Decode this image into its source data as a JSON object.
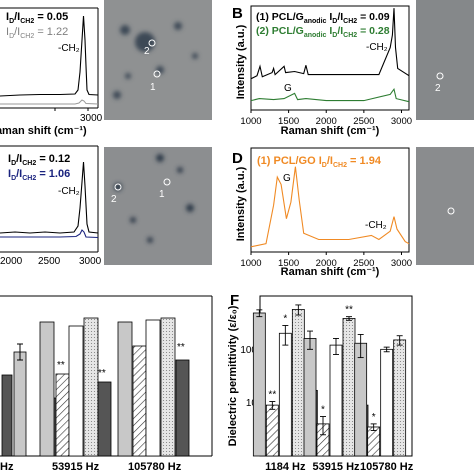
{
  "panels": {
    "A": {
      "legend": [
        {
          "html": "I<tspan font-size='7' dy='3'>D</tspan><tspan dy='-3'>/I</tspan><tspan font-size='7' dy='3'>CH2</tspan><tspan dy='-3'> = 0.05</tspan>",
          "color": "#000000",
          "bold": true
        },
        {
          "html": "I<tspan font-size='7' dy='3'>D</tspan><tspan dy='-3'>/I</tspan><tspan font-size='7' dy='3'>CH2</tspan><tspan dy='-3'> = 1.22</tspan>",
          "color": "#808080",
          "bold": false
        }
      ],
      "peak_label": "-CH₂",
      "xlabel": "Raman shift (cm⁻¹)",
      "xticks": [
        "3000"
      ],
      "spot_labels": [
        "2",
        "1"
      ]
    },
    "B": {
      "letter": "B",
      "legend": [
        {
          "text": "(1)  PCL/G",
          "sub": "anodic",
          "tail": "  I",
          "ratio": "0.09",
          "color": "#000000"
        },
        {
          "text": "(2)  PCL/G",
          "sub": "anodic",
          "tail": "  I",
          "ratio": "0.28",
          "color": "#2e7d32"
        }
      ],
      "legend_plain": [
        "(1)  PCL/G",
        "anodic",
        "I",
        "D",
        "/I",
        "CH2",
        " = 0.09",
        "(2)  PCL/G",
        "anodic",
        " = 0.28"
      ],
      "peak_label": "-CH₂",
      "g_label": "G",
      "ylabel": "Intensity (a.u.)",
      "xlabel": "Raman shift (cm⁻¹)",
      "xticks": [
        "1000",
        "1500",
        "2000",
        "2500",
        "3000"
      ],
      "spot_labels": [
        "2"
      ]
    },
    "C": {
      "legend_ratios": [
        " = 0.12",
        " = 1.06"
      ],
      "legend_colors": [
        "#000000",
        "#1a237e"
      ],
      "peak_label": "-CH₂",
      "xticks": [
        "2000",
        "2500",
        "3000"
      ],
      "spot_labels": [
        "2",
        "1"
      ]
    },
    "D": {
      "letter": "D",
      "legend_text": "(1)  PCL/GO",
      "legend_ratio": " = 1.94",
      "color": "#f08a24",
      "g_label": "G",
      "peak_label": "-CH₂",
      "ylabel": "Intensity (a.u.)",
      "xlabel": "Raman shift (cm⁻¹)",
      "xticks": [
        "1000",
        "1500",
        "2000",
        "2500",
        "3000"
      ]
    },
    "E": {
      "xticks": [
        "Hz",
        "53915 Hz",
        "105780 Hz"
      ],
      "marks": [
        "**",
        "**",
        "**"
      ]
    },
    "F": {
      "letter": "F",
      "ylabel": "Dielectric permittivity (ε/ε₀)",
      "yticks": [
        "10",
        "100"
      ],
      "xticks": [
        "1184 Hz",
        "53915 Hz",
        "105780 Hz"
      ],
      "ylim_log": [
        1,
        1000
      ]
    }
  },
  "chart_data": [
    {
      "type": "line",
      "panel": "B",
      "xlabel": "Raman shift (cm⁻¹)",
      "ylabel": "Intensity (a.u.)",
      "xlim": [
        1000,
        3100
      ],
      "series": [
        {
          "name": "(1) PCL/Ganodic",
          "color": "#000000",
          "points": [
            [
              1000,
              0.3
            ],
            [
              1080,
              0.33
            ],
            [
              1120,
              0.42
            ],
            [
              1150,
              0.32
            ],
            [
              1280,
              0.36
            ],
            [
              1300,
              0.4
            ],
            [
              1320,
              0.34
            ],
            [
              1440,
              0.42
            ],
            [
              1460,
              0.36
            ],
            [
              1580,
              0.37
            ],
            [
              1700,
              0.35
            ],
            [
              1730,
              0.43
            ],
            [
              1760,
              0.34
            ],
            [
              2000,
              0.34
            ],
            [
              2400,
              0.34
            ],
            [
              2700,
              0.34
            ],
            [
              2850,
              0.6
            ],
            [
              2880,
              0.72
            ],
            [
              2900,
              0.98
            ],
            [
              2920,
              0.6
            ],
            [
              2950,
              0.4
            ],
            [
              3100,
              0.33
            ]
          ]
        },
        {
          "name": "(2) PCL/Ganodic",
          "color": "#2e7d32",
          "points": [
            [
              1000,
              0.09
            ],
            [
              1110,
              0.11
            ],
            [
              1300,
              0.1
            ],
            [
              1440,
              0.11
            ],
            [
              1580,
              0.16
            ],
            [
              1620,
              0.1
            ],
            [
              1730,
              0.11
            ],
            [
              2000,
              0.09
            ],
            [
              2500,
              0.09
            ],
            [
              2850,
              0.15
            ],
            [
              2880,
              0.18
            ],
            [
              2900,
              0.2
            ],
            [
              2930,
              0.11
            ],
            [
              3100,
              0.08
            ]
          ]
        }
      ]
    },
    {
      "type": "line",
      "panel": "D",
      "xlabel": "Raman shift (cm⁻¹)",
      "ylabel": "Intensity (a.u.)",
      "xlim": [
        1000,
        3100
      ],
      "series": [
        {
          "name": "(1) PCL/GO",
          "color": "#f08a24",
          "points": [
            [
              1000,
              0.05
            ],
            [
              1200,
              0.08
            ],
            [
              1300,
              0.45
            ],
            [
              1350,
              0.72
            ],
            [
              1400,
              0.65
            ],
            [
              1470,
              0.32
            ],
            [
              1530,
              0.48
            ],
            [
              1590,
              0.82
            ],
            [
              1640,
              0.5
            ],
            [
              1700,
              0.18
            ],
            [
              1900,
              0.12
            ],
            [
              2300,
              0.12
            ],
            [
              2600,
              0.16
            ],
            [
              2700,
              0.12
            ],
            [
              2850,
              0.2
            ],
            [
              2900,
              0.34
            ],
            [
              2940,
              0.22
            ],
            [
              3050,
              0.1
            ],
            [
              3100,
              0.08
            ]
          ]
        }
      ]
    },
    {
      "type": "bar",
      "panel": "F",
      "ylabel": "Dielectric permittivity (ε/ε₀)",
      "yscale": "log",
      "ylim": [
        1,
        1000
      ],
      "categories": [
        "1184 Hz",
        "53915 Hz",
        "105780 Hz"
      ],
      "series": [
        {
          "values": [
            480,
            160,
            130
          ],
          "errors": [
            70,
            60,
            60
          ],
          "fill": "#c8c8c8",
          "mark": [
            "",
            "",
            ""
          ]
        },
        {
          "values": [
            9,
            4,
            3.5
          ],
          "errors": [
            1.5,
            1.5,
            0.5
          ],
          "fill": "hatch",
          "mark": [
            "**",
            "*",
            "*"
          ]
        },
        {
          "values": [
            200,
            120,
            100
          ],
          "errors": [
            80,
            40,
            10
          ],
          "fill": "#ffffff",
          "mark": [
            "*",
            "",
            ""
          ]
        },
        {
          "values": [
            560,
            380,
            150
          ],
          "errors": [
            120,
            30,
            30
          ],
          "fill": "dots",
          "mark": [
            "",
            "**",
            ""
          ]
        },
        {
          "values": [
            17,
            9,
            0
          ],
          "errors": [
            5,
            0,
            0
          ],
          "fill": "#555555",
          "mark": [
            "**",
            "*",
            ""
          ]
        }
      ]
    }
  ]
}
